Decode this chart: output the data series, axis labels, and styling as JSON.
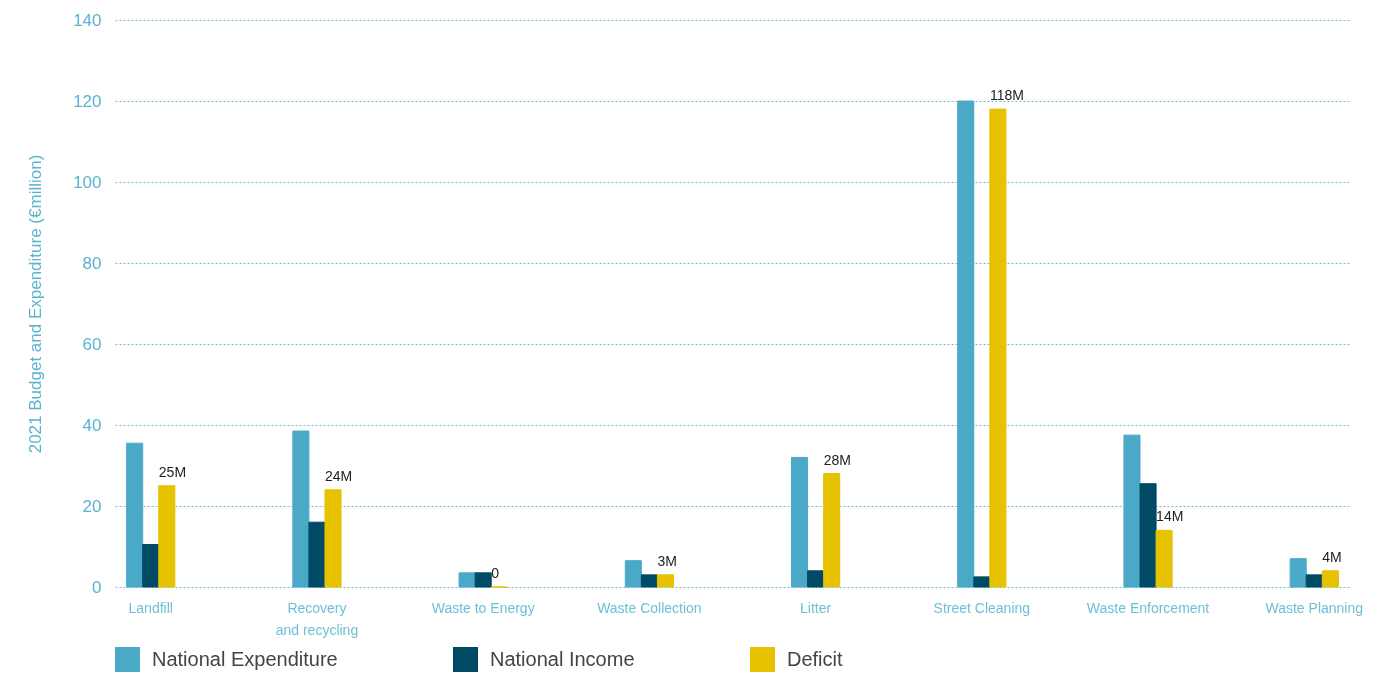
{
  "chart_data": {
    "type": "bar",
    "ylabel": "2021 Budget and Expenditure (€million)",
    "categories": [
      "Landfill",
      "Recovery and recycling",
      "Waste to Energy",
      "Waste Collection",
      "Litter",
      "Street Cleaning",
      "Waste Enforcement",
      "Waste Planning"
    ],
    "series": [
      {
        "name": "National Expenditure",
        "color": "#4ba9c8",
        "values": [
          35.5,
          38.5,
          3.5,
          6.5,
          32,
          120,
          37.5,
          7
        ]
      },
      {
        "name": "National Income",
        "color": "#004a66",
        "values": [
          10.5,
          16,
          3.5,
          3,
          4,
          2.5,
          25.5,
          3
        ]
      },
      {
        "name": "Deficit",
        "color": "#e6c200",
        "values": [
          25,
          24,
          0,
          3,
          28,
          118,
          14,
          4
        ],
        "value_labels": [
          "25M",
          "24M",
          "0",
          "3M",
          "28M",
          "118M",
          "14M",
          "4M"
        ]
      }
    ],
    "ylim": [
      0,
      140
    ],
    "yticks": [
      0,
      20,
      40,
      60,
      80,
      100,
      120,
      140
    ],
    "grid": "y",
    "legend": "bottom"
  }
}
